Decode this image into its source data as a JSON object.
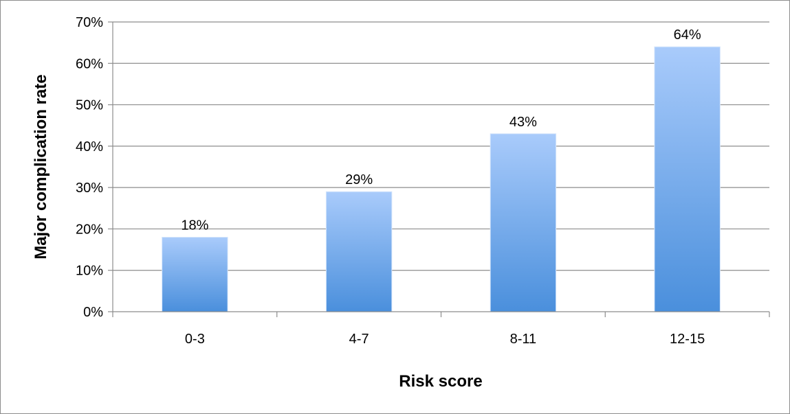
{
  "chart_data": {
    "type": "bar",
    "categories": [
      "0-3",
      "4-7",
      "8-11",
      "12-15"
    ],
    "values": [
      18,
      29,
      43,
      64
    ],
    "data_labels": [
      "18%",
      "29%",
      "43%",
      "64%"
    ],
    "xlabel": "Risk score",
    "ylabel": "Major complication rate",
    "ylim": [
      0,
      70
    ],
    "y_ticks": [
      0,
      10,
      20,
      30,
      40,
      50,
      60,
      70
    ],
    "y_tick_labels": [
      "0%",
      "10%",
      "20%",
      "30%",
      "40%",
      "50%",
      "60%",
      "70%"
    ],
    "grid": true,
    "legend": "none",
    "colors": {
      "bar_top": "#a9cbfb",
      "bar_bottom": "#4a8fdc",
      "grid": "#8c8c8c",
      "axis": "#8c8c8c"
    }
  }
}
